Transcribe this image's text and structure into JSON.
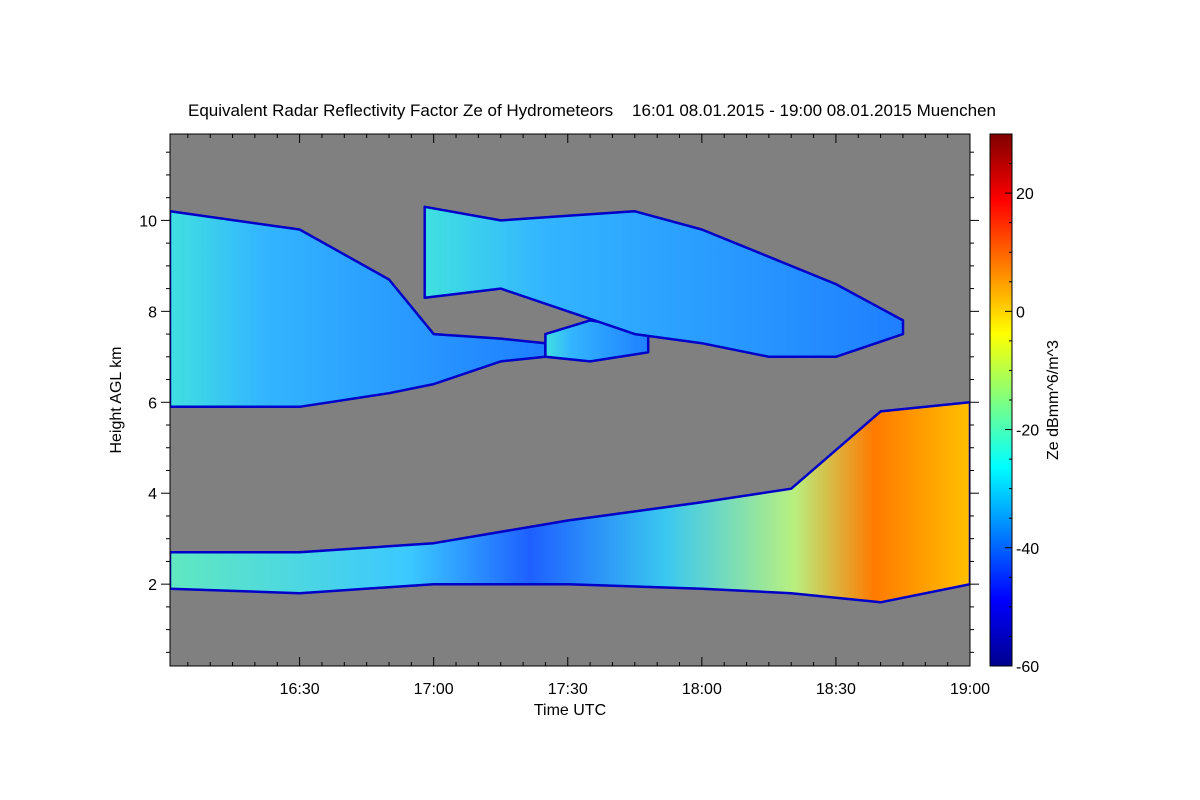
{
  "chart_data": {
    "type": "heatmap",
    "title": "Equivalent Radar Reflectivity Factor Ze of Hydrometeors    16:01 08.01.2015 - 19:00 08.01.2015 Muenchen",
    "xlabel": "Time UTC",
    "ylabel": "Height AGL km",
    "colorbar_label": "Ze dBmm^6/m^3",
    "x_range": [
      "16:01",
      "19:00"
    ],
    "x_ticks": [
      "16:30",
      "17:00",
      "17:30",
      "18:00",
      "18:30",
      "19:00"
    ],
    "ylim": [
      0.2,
      11.9
    ],
    "y_ticks": [
      2,
      4,
      6,
      8,
      10
    ],
    "color_range": [
      -60,
      30
    ],
    "colorbar_ticks": [
      -60,
      -40,
      -20,
      0,
      20
    ],
    "colormap": "jet",
    "background_color": "#808080",
    "cloud_layers": [
      {
        "name": "upper",
        "segments": [
          {
            "x": [
              "16:01",
              "16:30",
              "16:50",
              "17:00",
              "17:15",
              "17:25"
            ],
            "top": [
              10.2,
              9.8,
              8.7,
              7.5,
              7.4,
              7.3
            ],
            "bottom": [
              5.9,
              5.9,
              6.2,
              6.4,
              6.9,
              7.0
            ],
            "max_ze": -20
          },
          {
            "x": [
              "17:25",
              "17:35",
              "17:48"
            ],
            "top": [
              7.5,
              7.8,
              7.6
            ],
            "bottom": [
              7.0,
              6.9,
              7.1
            ],
            "max_ze": -30
          },
          {
            "x": [
              "16:58",
              "17:15",
              "17:30",
              "17:45",
              "18:00",
              "18:15",
              "18:30",
              "18:45"
            ],
            "top": [
              10.3,
              10.0,
              10.1,
              10.2,
              9.8,
              9.2,
              8.6,
              7.8
            ],
            "bottom": [
              8.3,
              8.5,
              8.0,
              7.5,
              7.3,
              7.0,
              7.0,
              7.5
            ],
            "max_ze": -30
          }
        ]
      },
      {
        "name": "lower",
        "segments": [
          {
            "x": [
              "16:01",
              "16:30",
              "17:00",
              "17:30",
              "18:00",
              "18:20",
              "18:40",
              "19:00"
            ],
            "top": [
              2.7,
              2.7,
              2.9,
              3.4,
              3.8,
              4.1,
              5.8,
              6.0
            ],
            "bottom": [
              1.9,
              1.8,
              2.0,
              2.0,
              1.9,
              1.8,
              1.6,
              2.0
            ],
            "max_ze": 10
          }
        ]
      }
    ]
  }
}
